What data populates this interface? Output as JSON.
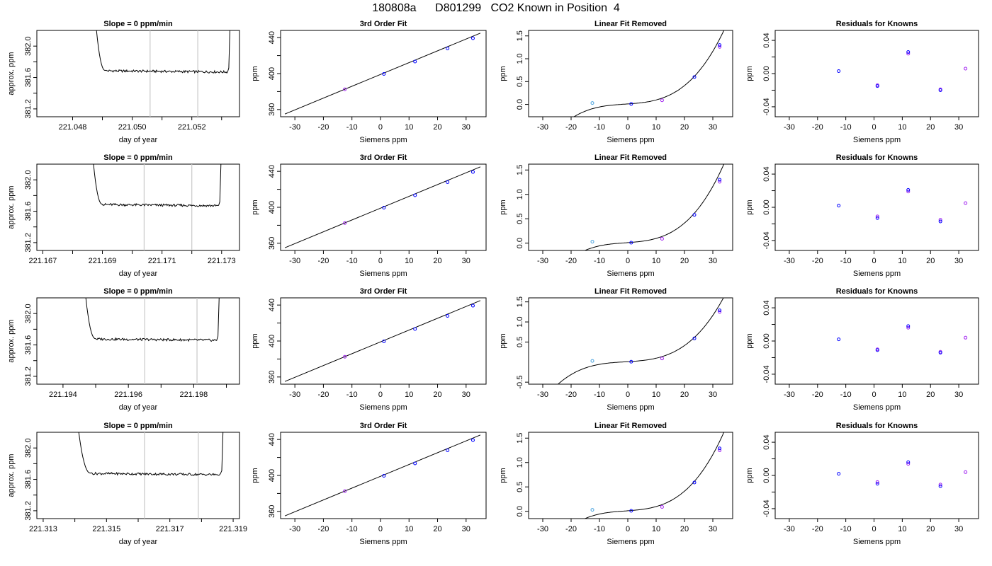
{
  "page": {
    "title": "180808a      D801299   CO2 Known in Position  4"
  },
  "chart_data": [
    {
      "type": "line",
      "panel": "time",
      "row": 1,
      "title": "Slope =  0  ppm/min",
      "xlabel": "day of year",
      "ylabel": "approx. ppm",
      "xlim": [
        221.0468,
        221.0536
      ],
      "ylim": [
        381.1,
        382.2
      ],
      "xticks": [
        221.048,
        221.049,
        221.05,
        221.051,
        221.052,
        221.053
      ],
      "xtick_labels": [
        "221.048",
        "",
        "221.050",
        "",
        "221.052",
        ""
      ],
      "yticks": [
        381.2,
        381.4,
        381.6,
        381.8,
        382.0
      ],
      "ytick_labels": [
        "381.2",
        "",
        "381.6",
        "",
        "382.0"
      ],
      "window_lines": [
        221.0506,
        221.0522
      ],
      "start_x": 221.0487,
      "flat_x": 221.0491,
      "end_flat_x": 221.0532,
      "end_x": 221.0533,
      "baseline": 381.67
    },
    {
      "type": "line",
      "panel": "fit",
      "row": 1,
      "title": "3rd Order Fit",
      "xlabel": "Siemens ppm",
      "ylabel": "ppm",
      "xlim": [
        -35,
        37
      ],
      "ylim": [
        352,
        448
      ],
      "xticks": [
        -30,
        -20,
        -10,
        0,
        10,
        20,
        30
      ],
      "xtick_labels": [
        "-30",
        "-20",
        "-10",
        "0",
        "10",
        "20",
        "30"
      ],
      "yticks": [
        360,
        380,
        400,
        420,
        440
      ],
      "ytick_labels": [
        "360",
        "",
        "400",
        "",
        "440"
      ],
      "line": {
        "x": [
          -33.5,
          35
        ],
        "y": [
          355,
          445
        ]
      },
      "points": {
        "x": [
          -12.5,
          1.2,
          12.1,
          23.5,
          32.4
        ],
        "y": [
          382.5,
          399.6,
          413.4,
          427.9,
          439.3
        ]
      }
    },
    {
      "type": "line",
      "panel": "resid",
      "row": 1,
      "title": "Linear Fit Removed",
      "xlabel": "Siemens ppm",
      "ylabel": "ppm",
      "xlim": [
        -35,
        37
      ],
      "ylim": [
        -0.27,
        1.62
      ],
      "xticks": [
        -30,
        -20,
        -10,
        0,
        10,
        20,
        30
      ],
      "xtick_labels": [
        "-30",
        "-20",
        "-10",
        "0",
        "10",
        "20",
        "30"
      ],
      "yticks": [
        0.0,
        0.5,
        1.0,
        1.5
      ],
      "ytick_labels": [
        "0.0",
        "0.5",
        "1.0",
        "1.5"
      ],
      "curve_coefficients": [
        0.0105,
        0.0042,
        0.0001,
        3.47e-05
      ],
      "curve_range": [
        -33,
        35
      ],
      "points": {
        "x": [
          -12.5,
          1.2,
          12.1,
          23.5,
          32.4,
          32.4
        ],
        "y": [
          0.03,
          0.01,
          0.09,
          0.6,
          1.26,
          1.3
        ]
      }
    },
    {
      "type": "scatter",
      "panel": "knowns",
      "row": 1,
      "title": "Residuals for Knowns",
      "xlabel": "Siemens ppm",
      "ylabel": "ppm",
      "xlim": [
        -35,
        37
      ],
      "ylim": [
        -0.052,
        0.052
      ],
      "xticks": [
        -30,
        -20,
        -10,
        0,
        10,
        20,
        30
      ],
      "xtick_labels": [
        "-30",
        "-20",
        "-10",
        "0",
        "10",
        "20",
        "30"
      ],
      "yticks": [
        -0.04,
        -0.02,
        0.0,
        0.02,
        0.04
      ],
      "ytick_labels": [
        "-0.04",
        "",
        "0.00",
        "",
        "0.04"
      ],
      "points": {
        "x": [
          -12.5,
          1.2,
          1.2,
          12.1,
          12.1,
          23.5,
          23.5,
          32.4
        ],
        "y": [
          0.003,
          -0.014,
          -0.015,
          0.024,
          0.026,
          -0.019,
          -0.02,
          0.006
        ]
      }
    },
    {
      "type": "line",
      "panel": "time",
      "row": 2,
      "title": "Slope =  0  ppm/min",
      "xlabel": "day of year",
      "ylabel": "approx. ppm",
      "xlim": [
        221.1668,
        221.1736
      ],
      "ylim": [
        381.1,
        382.2
      ],
      "xticks": [
        221.167,
        221.168,
        221.169,
        221.17,
        221.171,
        221.172,
        221.173
      ],
      "xtick_labels": [
        "221.167",
        "",
        "221.169",
        "",
        "221.171",
        "",
        "221.173"
      ],
      "yticks": [
        381.2,
        381.4,
        381.6,
        381.8,
        382.0
      ],
      "ytick_labels": [
        "381.2",
        "",
        "381.6",
        "",
        "382.0"
      ],
      "window_lines": [
        221.1704,
        221.172
      ],
      "start_x": 221.1686,
      "flat_x": 221.169,
      "end_flat_x": 221.1729,
      "end_x": 221.173,
      "baseline": 381.67
    },
    {
      "type": "line",
      "panel": "fit",
      "row": 2,
      "title": "3rd Order Fit",
      "xlabel": "Siemens ppm",
      "ylabel": "ppm",
      "xlim": [
        -35,
        37
      ],
      "ylim": [
        352,
        448
      ],
      "xticks": [
        -30,
        -20,
        -10,
        0,
        10,
        20,
        30
      ],
      "xtick_labels": [
        "-30",
        "-20",
        "-10",
        "0",
        "10",
        "20",
        "30"
      ],
      "yticks": [
        360,
        380,
        400,
        420,
        440
      ],
      "ytick_labels": [
        "360",
        "",
        "400",
        "",
        "440"
      ],
      "line": {
        "x": [
          -33.5,
          35
        ],
        "y": [
          355,
          445
        ]
      },
      "points": {
        "x": [
          -12.5,
          1.2,
          12.1,
          23.5,
          32.4
        ],
        "y": [
          382.5,
          399.6,
          413.4,
          427.9,
          439.3
        ]
      }
    },
    {
      "type": "line",
      "panel": "resid",
      "row": 2,
      "title": "Linear Fit Removed",
      "xlabel": "Siemens ppm",
      "ylabel": "ppm",
      "xlim": [
        -35,
        37
      ],
      "ylim": [
        -0.15,
        1.62
      ],
      "xticks": [
        -30,
        -20,
        -10,
        0,
        10,
        20,
        30
      ],
      "xtick_labels": [
        "-30",
        "-20",
        "-10",
        "0",
        "10",
        "20",
        "30"
      ],
      "yticks": [
        0.0,
        0.5,
        1.0,
        1.5
      ],
      "ytick_labels": [
        "0.0",
        "0.5",
        "1.0",
        "1.5"
      ],
      "curve_coefficients": [
        0.0105,
        0.0042,
        0.0001,
        3.47e-05
      ],
      "curve_range": [
        -33,
        35
      ],
      "points": {
        "x": [
          -12.5,
          1.2,
          12.1,
          23.5,
          32.4,
          32.4
        ],
        "y": [
          0.03,
          0.01,
          0.09,
          0.58,
          1.26,
          1.3
        ]
      }
    },
    {
      "type": "scatter",
      "panel": "knowns",
      "row": 2,
      "title": "Residuals for Knowns",
      "xlabel": "Siemens ppm",
      "ylabel": "ppm",
      "xlim": [
        -35,
        37
      ],
      "ylim": [
        -0.052,
        0.052
      ],
      "xticks": [
        -30,
        -20,
        -10,
        0,
        10,
        20,
        30
      ],
      "xtick_labels": [
        "-30",
        "-20",
        "-10",
        "0",
        "10",
        "20",
        "30"
      ],
      "yticks": [
        -0.04,
        -0.02,
        0.0,
        0.02,
        0.04
      ],
      "ytick_labels": [
        "-0.04",
        "",
        "0.00",
        "",
        "0.04"
      ],
      "points": {
        "x": [
          -12.5,
          1.2,
          1.2,
          12.1,
          12.1,
          23.5,
          23.5,
          32.4
        ],
        "y": [
          0.002,
          -0.011,
          -0.013,
          0.019,
          0.021,
          -0.015,
          -0.017,
          0.005
        ]
      }
    },
    {
      "type": "line",
      "panel": "time",
      "row": 3,
      "title": "Slope =  0  ppm/min",
      "xlabel": "day of year",
      "ylabel": "approx. ppm",
      "xlim": [
        221.1932,
        221.1994
      ],
      "ylim": [
        381.1,
        382.2
      ],
      "xticks": [
        221.194,
        221.195,
        221.196,
        221.197,
        221.198,
        221.199
      ],
      "xtick_labels": [
        "221.194",
        "",
        "221.196",
        "",
        "221.198",
        ""
      ],
      "yticks": [
        381.2,
        381.4,
        381.6,
        381.8,
        382.0
      ],
      "ytick_labels": [
        "381.2",
        "",
        "381.6",
        "",
        "382.0"
      ],
      "window_lines": [
        221.1965,
        221.1981
      ],
      "start_x": 221.1946,
      "flat_x": 221.195,
      "end_flat_x": 221.1987,
      "end_x": 221.1988,
      "baseline": 381.66
    },
    {
      "type": "line",
      "panel": "fit",
      "row": 3,
      "title": "3rd Order Fit",
      "xlabel": "Siemens ppm",
      "ylabel": "ppm",
      "xlim": [
        -35,
        37
      ],
      "ylim": [
        352,
        448
      ],
      "xticks": [
        -30,
        -20,
        -10,
        0,
        10,
        20,
        30
      ],
      "xtick_labels": [
        "-30",
        "-20",
        "-10",
        "0",
        "10",
        "20",
        "30"
      ],
      "yticks": [
        360,
        380,
        400,
        420,
        440
      ],
      "ytick_labels": [
        "360",
        "",
        "400",
        "",
        "440"
      ],
      "line": {
        "x": [
          -33.5,
          35
        ],
        "y": [
          355,
          445
        ]
      },
      "points": {
        "x": [
          -12.5,
          1.2,
          12.1,
          23.5,
          32.4
        ],
        "y": [
          382.5,
          399.6,
          413.4,
          427.9,
          439.3
        ]
      }
    },
    {
      "type": "line",
      "panel": "resid",
      "row": 3,
      "title": "Linear Fit Removed",
      "xlabel": "Siemens ppm",
      "ylabel": "ppm",
      "xlim": [
        -35,
        37
      ],
      "ylim": [
        -0.55,
        1.6
      ],
      "xticks": [
        -30,
        -20,
        -10,
        0,
        10,
        20,
        30
      ],
      "xtick_labels": [
        "-30",
        "-20",
        "-10",
        "0",
        "10",
        "20",
        "30"
      ],
      "yticks": [
        -0.5,
        0.5,
        1.0,
        1.5
      ],
      "ytick_labels": [
        "-0.5",
        "0.5",
        "1.0",
        "1.5"
      ],
      "curve_coefficients": [
        0.0105,
        0.0042,
        0.0001,
        3.47e-05
      ],
      "curve_range": [
        -33,
        35
      ],
      "points": {
        "x": [
          -12.5,
          1.2,
          12.1,
          23.5,
          32.4,
          32.4
        ],
        "y": [
          0.03,
          0.01,
          0.09,
          0.59,
          1.25,
          1.29
        ]
      }
    },
    {
      "type": "scatter",
      "panel": "knowns",
      "row": 3,
      "title": "Residuals for Knowns",
      "xlabel": "Siemens ppm",
      "ylabel": "ppm",
      "xlim": [
        -35,
        37
      ],
      "ylim": [
        -0.052,
        0.052
      ],
      "xticks": [
        -30,
        -20,
        -10,
        0,
        10,
        20,
        30
      ],
      "xtick_labels": [
        "-30",
        "-20",
        "-10",
        "0",
        "10",
        "20",
        "30"
      ],
      "yticks": [
        -0.04,
        -0.02,
        0.0,
        0.02,
        0.04
      ],
      "ytick_labels": [
        "-0.04",
        "",
        "0.00",
        "",
        "0.04"
      ],
      "points": {
        "x": [
          -12.5,
          1.2,
          1.2,
          12.1,
          12.1,
          23.5,
          23.5,
          32.4
        ],
        "y": [
          0.002,
          -0.01,
          -0.011,
          0.016,
          0.018,
          -0.013,
          -0.014,
          0.004
        ]
      }
    },
    {
      "type": "line",
      "panel": "time",
      "row": 4,
      "title": "Slope =  0  ppm/min",
      "xlabel": "day of year",
      "ylabel": "approx. ppm",
      "xlim": [
        221.3128,
        221.3192
      ],
      "ylim": [
        381.1,
        382.2
      ],
      "xticks": [
        221.313,
        221.314,
        221.315,
        221.316,
        221.317,
        221.318,
        221.319
      ],
      "xtick_labels": [
        "221.313",
        "",
        "221.315",
        "",
        "221.317",
        "",
        "221.319"
      ],
      "yticks": [
        381.2,
        381.4,
        381.6,
        381.8,
        382.0
      ],
      "ytick_labels": [
        "381.2",
        "",
        "381.6",
        "",
        "382.0"
      ],
      "window_lines": [
        221.3162,
        221.3179
      ],
      "start_x": 221.314,
      "flat_x": 221.3145,
      "end_flat_x": 221.3186,
      "end_x": 221.3187,
      "baseline": 381.66
    },
    {
      "type": "line",
      "panel": "fit",
      "row": 4,
      "title": "3rd Order Fit",
      "xlabel": "Siemens ppm",
      "ylabel": "ppm",
      "xlim": [
        -35,
        37
      ],
      "ylim": [
        352,
        448
      ],
      "xticks": [
        -30,
        -20,
        -10,
        0,
        10,
        20,
        30
      ],
      "xtick_labels": [
        "-30",
        "-20",
        "-10",
        "0",
        "10",
        "20",
        "30"
      ],
      "yticks": [
        360,
        380,
        400,
        420,
        440
      ],
      "ytick_labels": [
        "360",
        "",
        "400",
        "",
        "440"
      ],
      "line": {
        "x": [
          -33.5,
          35
        ],
        "y": [
          355,
          445
        ]
      },
      "points": {
        "x": [
          -12.5,
          1.2,
          12.1,
          23.5,
          32.4
        ],
        "y": [
          382.5,
          399.6,
          413.4,
          427.9,
          439.3
        ]
      }
    },
    {
      "type": "line",
      "panel": "resid",
      "row": 4,
      "title": "Linear Fit Removed",
      "xlabel": "Siemens ppm",
      "ylabel": "ppm",
      "xlim": [
        -35,
        37
      ],
      "ylim": [
        -0.15,
        1.62
      ],
      "xticks": [
        -30,
        -20,
        -10,
        0,
        10,
        20,
        30
      ],
      "xtick_labels": [
        "-30",
        "-20",
        "-10",
        "0",
        "10",
        "20",
        "30"
      ],
      "yticks": [
        0.0,
        0.5,
        1.0,
        1.5
      ],
      "ytick_labels": [
        "0.0",
        "0.5",
        "1.0",
        "1.5"
      ],
      "curve_coefficients": [
        0.0105,
        0.0042,
        0.0001,
        3.47e-05
      ],
      "curve_range": [
        -33,
        35
      ],
      "points": {
        "x": [
          -12.5,
          1.2,
          12.1,
          23.5,
          32.4,
          32.4
        ],
        "y": [
          0.03,
          0.01,
          0.09,
          0.59,
          1.25,
          1.29
        ]
      }
    },
    {
      "type": "scatter",
      "panel": "knowns",
      "row": 4,
      "title": "Residuals for Knowns",
      "xlabel": "Siemens ppm",
      "ylabel": "ppm",
      "xlim": [
        -35,
        37
      ],
      "ylim": [
        -0.052,
        0.052
      ],
      "xticks": [
        -30,
        -20,
        -10,
        0,
        10,
        20,
        30
      ],
      "xtick_labels": [
        "-30",
        "-20",
        "-10",
        "0",
        "10",
        "20",
        "30"
      ],
      "yticks": [
        -0.04,
        -0.02,
        0.0,
        0.02,
        0.04
      ],
      "ytick_labels": [
        "-0.04",
        "",
        "0.00",
        "",
        "0.04"
      ],
      "points": {
        "x": [
          -12.5,
          1.2,
          1.2,
          12.1,
          12.1,
          23.5,
          23.5,
          32.4
        ],
        "y": [
          0.002,
          -0.008,
          -0.01,
          0.014,
          0.016,
          -0.011,
          -0.013,
          0.004
        ]
      }
    }
  ],
  "colors": {
    "axis": "#000000",
    "window_line": "#c8c8c8",
    "point_main": "#0000ff",
    "point_alt": "#a020f0",
    "point_first": "#4aa3df"
  }
}
